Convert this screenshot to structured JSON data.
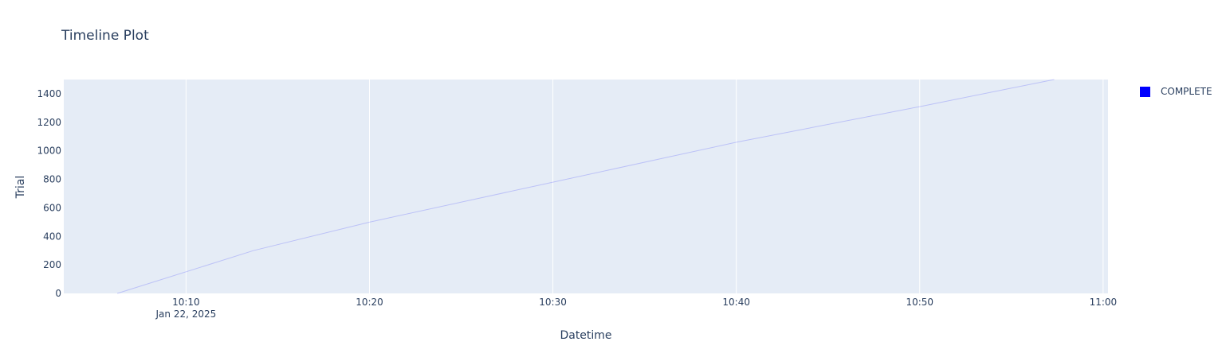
{
  "chart_data": {
    "type": "bar",
    "title": "Timeline Plot",
    "xlabel": "Datetime",
    "ylabel": "Trial",
    "x_axis_type": "datetime",
    "xlim": [
      "2025-01-22 10:03:20",
      "2025-01-22 11:00:16"
    ],
    "ylim": [
      0,
      1500
    ],
    "y_ticks": [
      0,
      200,
      400,
      600,
      800,
      1000,
      1200,
      1400
    ],
    "x_ticks": [
      {
        "value": "2025-01-22 10:10:00",
        "label": "10:10",
        "sublabel": "Jan 22, 2025"
      },
      {
        "value": "2025-01-22 10:20:00",
        "label": "10:20",
        "sublabel": ""
      },
      {
        "value": "2025-01-22 10:30:00",
        "label": "10:30",
        "sublabel": ""
      },
      {
        "value": "2025-01-22 10:40:00",
        "label": "10:40",
        "sublabel": ""
      },
      {
        "value": "2025-01-22 10:50:00",
        "label": "10:50",
        "sublabel": ""
      },
      {
        "value": "2025-01-22 11:00:00",
        "label": "11:00",
        "sublabel": ""
      }
    ],
    "grid": true,
    "legend_position": "top-right",
    "series": [
      {
        "name": "COMPLETE",
        "color": "#0000ff",
        "points": [
          {
            "x": "2025-01-22 10:06:15",
            "y": 0
          },
          {
            "x": "2025-01-22 10:13:40",
            "y": 300
          },
          {
            "x": "2025-01-22 10:20:00",
            "y": 500
          },
          {
            "x": "2025-01-22 10:30:00",
            "y": 780
          },
          {
            "x": "2025-01-22 10:40:00",
            "y": 1060
          },
          {
            "x": "2025-01-22 10:50:00",
            "y": 1310
          },
          {
            "x": "2025-01-22 10:57:20",
            "y": 1500
          }
        ]
      }
    ]
  },
  "colors": {
    "plot_background": "#e5ecf6",
    "grid": "#ffffff",
    "text": "#2a3f5f"
  }
}
